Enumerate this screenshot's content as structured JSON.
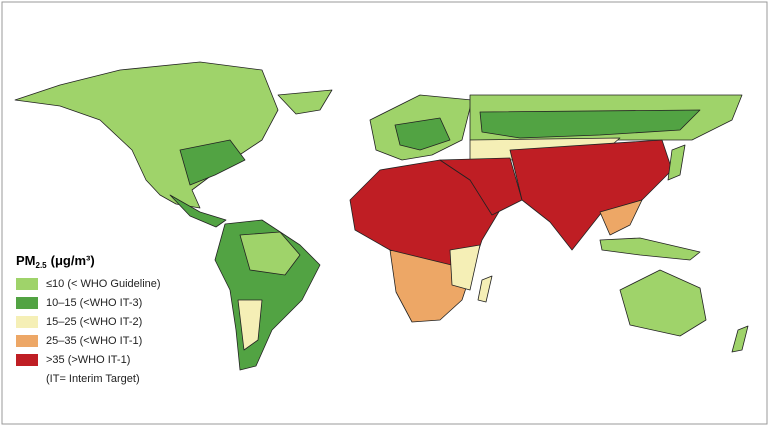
{
  "legend": {
    "title": {
      "main": "PM",
      "sub": "2.5",
      "unit": "(μg/m³)"
    },
    "items": [
      {
        "label": "≤10 (< WHO Guideline)",
        "color": "#9fd36a"
      },
      {
        "label": "10–15 (<WHO IT-3)",
        "color": "#52a343"
      },
      {
        "label": "15–25 (<WHO IT-2)",
        "color": "#f5efb6"
      },
      {
        "label": "25–35 (<WHO IT-1)",
        "color": "#eda766"
      },
      {
        "label": ">35   (>WHO IT-1)",
        "color": "#bf1e24"
      }
    ],
    "note": "(IT= Interim Target)"
  }
}
